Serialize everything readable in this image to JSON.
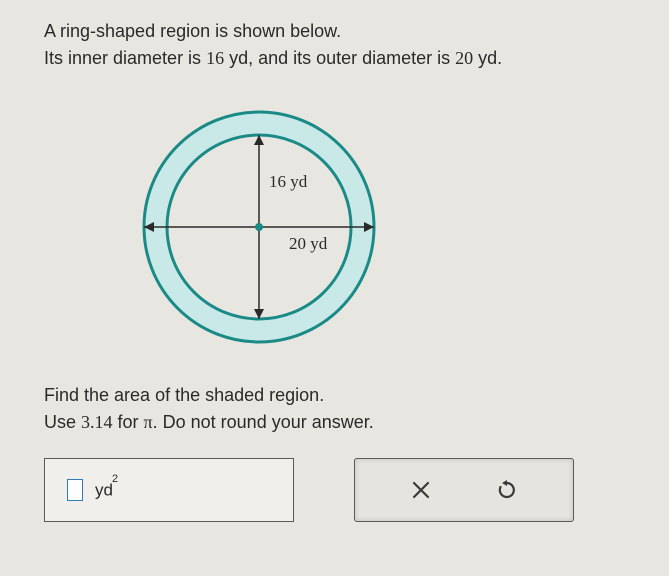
{
  "prompt": {
    "line1_a": "A ring-shaped region is shown below.",
    "line2_a": "Its inner diameter is ",
    "inner_value": "16",
    "line2_b": " yd, and its outer diameter is ",
    "outer_value": "20",
    "line2_c": " yd."
  },
  "diagram": {
    "outer_radius": 115,
    "inner_radius": 92,
    "ring_fill": "#c9e9e8",
    "stroke": "#1a8a87",
    "stroke_width": 3,
    "center_dot": "#1a8a87",
    "label_inner": "16 yd",
    "label_outer": "20 yd",
    "axis_color": "#2a2a2a"
  },
  "question": {
    "line1": "Find the area of the shaded region.",
    "line2_a": "Use ",
    "pi_val": "3.14",
    "line2_b": " for ",
    "pi_sym": "π",
    "line2_c": ". Do not round your answer."
  },
  "answer": {
    "unit_base": "yd",
    "unit_exp": "2"
  },
  "controls": {
    "clear": "×",
    "reset": "↺"
  },
  "colors": {
    "input_border": "#2f7db6"
  }
}
